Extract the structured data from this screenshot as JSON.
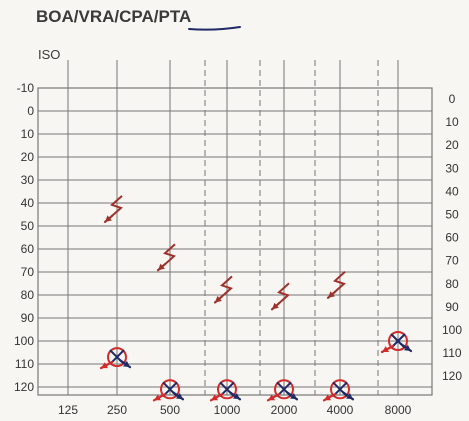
{
  "header": {
    "prefix": "BOA/VRA/CPA/",
    "selected": "PTA",
    "scale_label": "ISO"
  },
  "colors": {
    "grid": "#777777",
    "bone_conduction": "#a0302a",
    "right_ear": "#d42a2a",
    "left_ear": "#1f2a66",
    "underline": "#1f2a66"
  },
  "chart_data": {
    "type": "scatter",
    "title": "",
    "xlabel": "",
    "ylabel": "",
    "x_categories": [
      "125",
      "250",
      "500",
      "1000",
      "2000",
      "4000",
      "8000"
    ],
    "left_y_ticks": [
      "-10",
      "0",
      "10",
      "20",
      "30",
      "40",
      "50",
      "60",
      "70",
      "80",
      "90",
      "100",
      "110",
      "120"
    ],
    "right_y_ticks": [
      "0",
      "10",
      "20",
      "30",
      "40",
      "50",
      "60",
      "70",
      "80",
      "90",
      "100",
      "110",
      "120"
    ],
    "ylim": [
      -10,
      120
    ],
    "y_inverted": true,
    "grid": true,
    "interoctave_dashed": [
      "750",
      "1500",
      "3000",
      "6000"
    ],
    "series": [
      {
        "symbol": "bone-conduction-no-response",
        "points": [
          {
            "freq": "250",
            "db": 43
          },
          {
            "freq": "500",
            "db": 64
          },
          {
            "freq": "1000",
            "db": 78
          },
          {
            "freq": "2000",
            "db": 81
          },
          {
            "freq": "4000",
            "db": 76
          }
        ]
      },
      {
        "symbol": "air-conduction-no-response-both-ears",
        "points": [
          {
            "freq": "250",
            "db": 107
          },
          {
            "freq": "500",
            "db": 121
          },
          {
            "freq": "1000",
            "db": 121
          },
          {
            "freq": "2000",
            "db": 121
          },
          {
            "freq": "4000",
            "db": 121
          },
          {
            "freq": "8000",
            "db": 100
          }
        ]
      }
    ]
  }
}
